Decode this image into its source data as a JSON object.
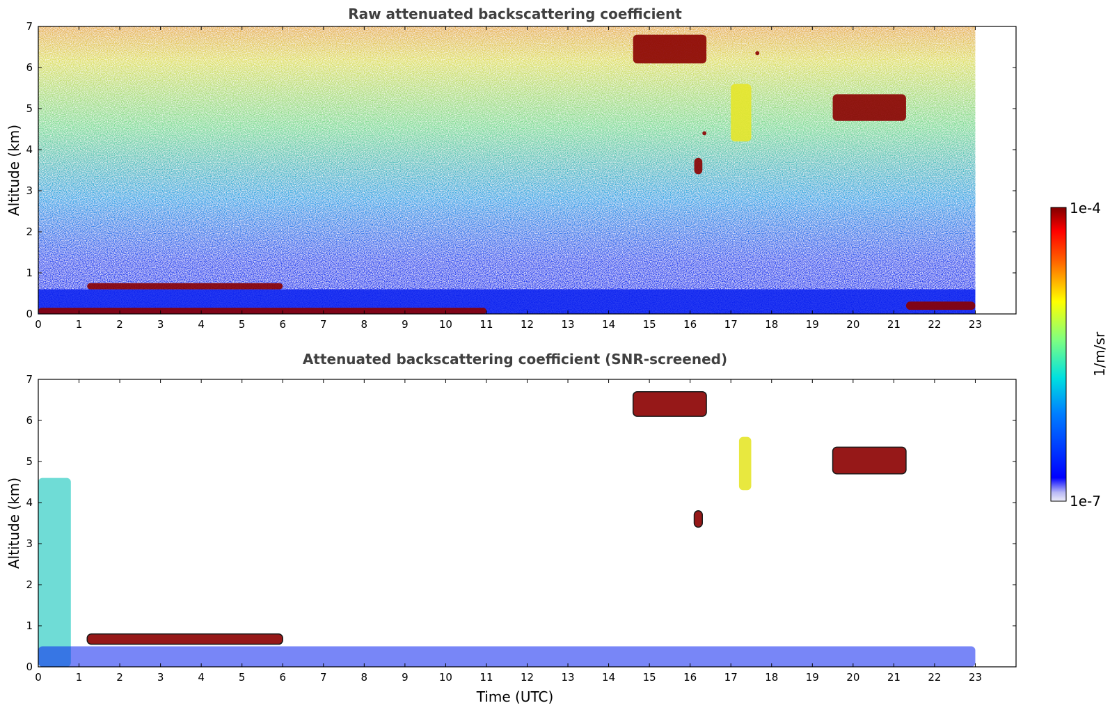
{
  "chart_data": [
    {
      "type": "heatmap",
      "title": "Raw attenuated backscattering coefficient",
      "xlabel": "",
      "ylabel": "Altitude (km)",
      "xlim": [
        0,
        24
      ],
      "ylim": [
        0,
        7
      ],
      "x_ticks": [
        0,
        1,
        2,
        3,
        4,
        5,
        6,
        7,
        8,
        9,
        10,
        11,
        12,
        13,
        14,
        15,
        16,
        17,
        18,
        19,
        20,
        21,
        22,
        23
      ],
      "y_ticks": [
        0,
        1,
        2,
        3,
        4,
        5,
        6,
        7
      ],
      "data_extent_hours": [
        0,
        23
      ],
      "features": [
        {
          "kind": "boundary layer",
          "t": [
            1.2,
            6.0
          ],
          "alt": [
            0.6,
            0.75
          ],
          "level": "high"
        },
        {
          "kind": "surface layer",
          "t": [
            0,
            11.0
          ],
          "alt": [
            0,
            0.15
          ],
          "level": "high"
        },
        {
          "kind": "cloud",
          "t": [
            14.6,
            16.4
          ],
          "alt": [
            6.1,
            6.8
          ],
          "level": "high"
        },
        {
          "kind": "cloud",
          "t": [
            17.6,
            17.7
          ],
          "alt": [
            6.3,
            6.4
          ],
          "level": "high"
        },
        {
          "kind": "cloud",
          "t": [
            19.5,
            21.3
          ],
          "alt": [
            4.7,
            5.35
          ],
          "level": "high"
        },
        {
          "kind": "cloud",
          "t": [
            16.1,
            16.3
          ],
          "alt": [
            3.4,
            3.8
          ],
          "level": "high"
        },
        {
          "kind": "cloud",
          "t": [
            16.3,
            16.4
          ],
          "alt": [
            4.35,
            4.45
          ],
          "level": "high"
        },
        {
          "kind": "virga",
          "t": [
            17.0,
            17.5
          ],
          "alt": [
            4.2,
            5.6
          ],
          "level": "medium"
        },
        {
          "kind": "low layer",
          "t": [
            21.3,
            23.0
          ],
          "alt": [
            0.1,
            0.3
          ],
          "level": "high"
        }
      ]
    },
    {
      "type": "heatmap",
      "title": "Attenuated backscattering coefficient (SNR-screened)",
      "xlabel": "Time (UTC)",
      "ylabel": "Altitude (km)",
      "xlim": [
        0,
        24
      ],
      "ylim": [
        0,
        7
      ],
      "x_ticks": [
        0,
        1,
        2,
        3,
        4,
        5,
        6,
        7,
        8,
        9,
        10,
        11,
        12,
        13,
        14,
        15,
        16,
        17,
        18,
        19,
        20,
        21,
        22,
        23
      ],
      "y_ticks": [
        0,
        1,
        2,
        3,
        4,
        5,
        6,
        7
      ],
      "data_extent_hours": [
        0,
        23
      ],
      "features": [
        {
          "kind": "boundary layer",
          "t": [
            1.2,
            6.0
          ],
          "alt": [
            0.55,
            0.8
          ],
          "level": "high"
        },
        {
          "kind": "aerosol column",
          "t": [
            0,
            0.8
          ],
          "alt": [
            0,
            4.6
          ],
          "level": "medium"
        },
        {
          "kind": "mixing layer",
          "t": [
            0,
            23.0
          ],
          "alt": [
            0,
            0.5
          ],
          "level": "low"
        },
        {
          "kind": "cloud",
          "t": [
            14.6,
            16.4
          ],
          "alt": [
            6.1,
            6.7
          ],
          "level": "high"
        },
        {
          "kind": "cloud",
          "t": [
            19.5,
            21.3
          ],
          "alt": [
            4.7,
            5.35
          ],
          "level": "high"
        },
        {
          "kind": "cloud",
          "t": [
            16.1,
            16.3
          ],
          "alt": [
            3.4,
            3.8
          ],
          "level": "high"
        },
        {
          "kind": "virga",
          "t": [
            17.2,
            17.5
          ],
          "alt": [
            4.3,
            5.6
          ],
          "level": "medium"
        }
      ]
    }
  ],
  "colorbar": {
    "max_label": "1e-4",
    "min_label": "1e-7",
    "unit_label": "1/m/sr",
    "colormap": "jet"
  },
  "colors": {
    "very_low": "#e6e6ff",
    "low": "#0a22f0",
    "medium": "#3fd0c8",
    "mid_high": "#e6e62a",
    "high": "#8b0000",
    "edge": "#000000"
  }
}
